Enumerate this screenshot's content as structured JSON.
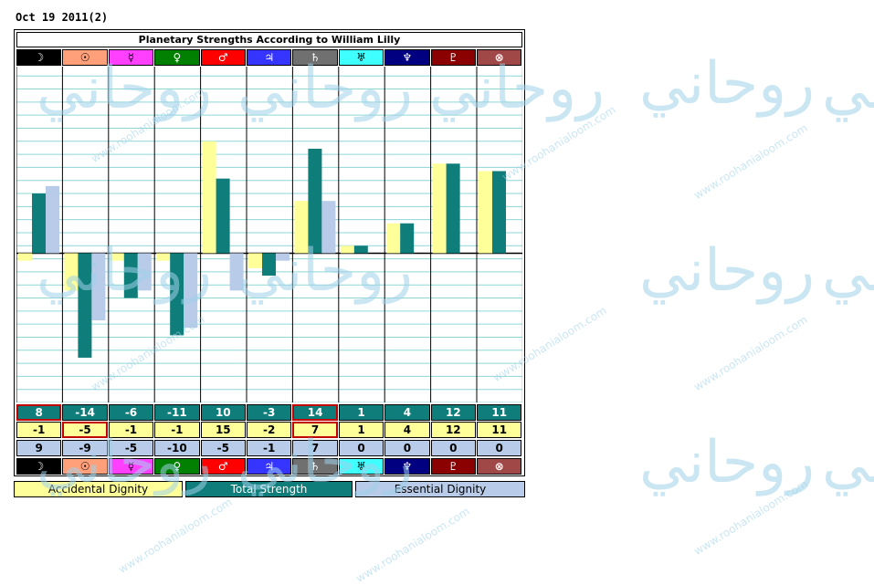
{
  "date_label": "Oct 19 2011(2)",
  "chart_data": {
    "type": "bar",
    "title": "Planetary Strengths According to William Lilly",
    "planets": [
      {
        "glyph": "☽",
        "name": "moon-icon",
        "bg": "#000000",
        "fg": "#ffffff"
      },
      {
        "glyph": "☉",
        "name": "sun-icon",
        "bg": "#ffa07a",
        "fg": "#000000"
      },
      {
        "glyph": "☿",
        "name": "mercury-icon",
        "bg": "#ff40ff",
        "fg": "#000000"
      },
      {
        "glyph": "♀",
        "name": "venus-icon",
        "bg": "#008000",
        "fg": "#ffffff"
      },
      {
        "glyph": "♂",
        "name": "mars-icon",
        "bg": "#ff0000",
        "fg": "#ffffff"
      },
      {
        "glyph": "♃",
        "name": "jupiter-icon",
        "bg": "#3535ff",
        "fg": "#ffffff"
      },
      {
        "glyph": "♄",
        "name": "saturn-icon",
        "bg": "#707070",
        "fg": "#ffffff"
      },
      {
        "glyph": "♅",
        "name": "uranus-icon",
        "bg": "#40ffff",
        "fg": "#000000"
      },
      {
        "glyph": "♆",
        "name": "neptune-icon",
        "bg": "#000080",
        "fg": "#ffffff"
      },
      {
        "glyph": "♇",
        "name": "pluto-icon",
        "bg": "#8b0000",
        "fg": "#ffffff"
      },
      {
        "glyph": "⊗",
        "name": "part-of-fortune-icon",
        "bg": "#a04848",
        "fg": "#ffffff"
      }
    ],
    "series": [
      {
        "name": "Accidental Dignity",
        "color": "#ffff99",
        "values": [
          -1,
          -5,
          -1,
          -1,
          15,
          -2,
          7,
          1,
          4,
          12,
          11
        ]
      },
      {
        "name": "Total Strength",
        "color": "#0f7d7a",
        "values": [
          8,
          -14,
          -6,
          -11,
          10,
          -3,
          14,
          1,
          4,
          12,
          11
        ]
      },
      {
        "name": "Essential Dignity",
        "color": "#b8cbe8",
        "values": [
          9,
          -9,
          -5,
          -10,
          -5,
          -1,
          7,
          0,
          0,
          0,
          0
        ]
      }
    ],
    "highlighted_total": [
      0,
      6
    ],
    "highlighted_accidental": [
      1,
      6
    ],
    "ylim": [
      -20,
      25
    ],
    "grid": true
  },
  "legend": {
    "accidental": "Accidental Dignity",
    "total": "Total Strength",
    "essential": "Essential Dignity"
  },
  "watermark": {
    "logo_text": "روحاني",
    "url": "www.roohanialoom.com"
  }
}
